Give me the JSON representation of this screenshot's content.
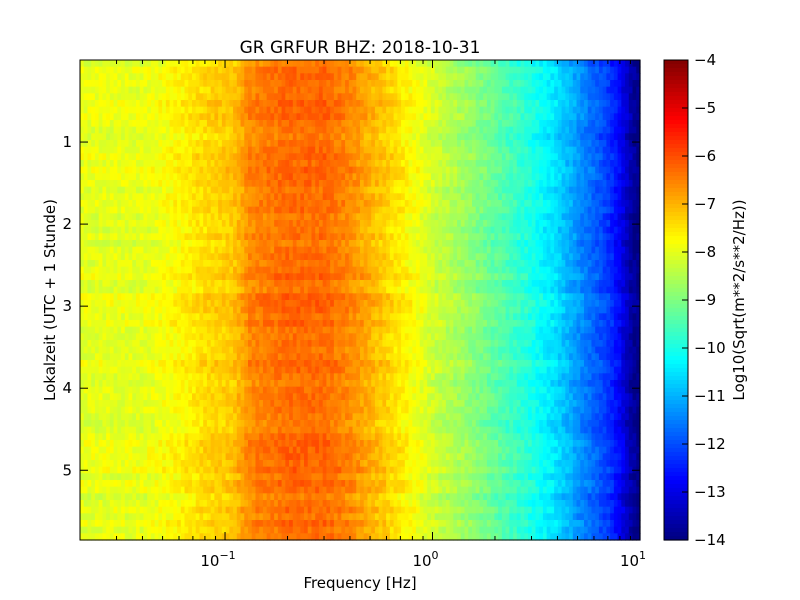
{
  "chart_data": {
    "type": "heatmap",
    "title": "GR GRFUR BHZ: 2018-10-31",
    "xlabel": "Frequency [Hz]",
    "ylabel": "Lokalzeit (UTC + 1 Stunde)",
    "x_scale": "log",
    "xlim": [
      0.02,
      10
    ],
    "ylim": [
      5.85,
      0
    ],
    "x_ticks": [
      {
        "value": 0.1,
        "base": "10",
        "exp": "−1"
      },
      {
        "value": 1,
        "base": "10",
        "exp": "0"
      },
      {
        "value": 10,
        "base": "10",
        "exp": "1"
      }
    ],
    "y_ticks": [
      {
        "value": 1,
        "label": "1"
      },
      {
        "value": 2,
        "label": "2"
      },
      {
        "value": 3,
        "label": "3"
      },
      {
        "value": 4,
        "label": "4"
      },
      {
        "value": 5,
        "label": "5"
      }
    ],
    "colorbar": {
      "label": "Log10(Sqrt(m**2/s**2/Hz))",
      "colormap": "jet",
      "range": [
        -14,
        -4
      ],
      "ticks": [
        {
          "value": -4,
          "label": "−4"
        },
        {
          "value": -5,
          "label": "−5"
        },
        {
          "value": -6,
          "label": "−6"
        },
        {
          "value": -7,
          "label": "−7"
        },
        {
          "value": -8,
          "label": "−8"
        },
        {
          "value": -9,
          "label": "−9"
        },
        {
          "value": -10,
          "label": "−10"
        },
        {
          "value": -11,
          "label": "−11"
        },
        {
          "value": -12,
          "label": "−12"
        },
        {
          "value": -13,
          "label": "−13"
        },
        {
          "value": -14,
          "label": "−14"
        }
      ]
    },
    "time_rows": 72,
    "spectrum_profile": [
      {
        "f": 0.02,
        "v": -8.0
      },
      {
        "f": 0.04,
        "v": -8.0
      },
      {
        "f": 0.06,
        "v": -7.7
      },
      {
        "f": 0.08,
        "v": -7.4
      },
      {
        "f": 0.11,
        "v": -7.2
      },
      {
        "f": 0.13,
        "v": -6.6
      },
      {
        "f": 0.2,
        "v": -6.3
      },
      {
        "f": 0.3,
        "v": -6.3
      },
      {
        "f": 0.4,
        "v": -6.6
      },
      {
        "f": 0.6,
        "v": -7.3
      },
      {
        "f": 0.8,
        "v": -7.8
      },
      {
        "f": 1.0,
        "v": -8.2
      },
      {
        "f": 1.5,
        "v": -8.8
      },
      {
        "f": 2.0,
        "v": -9.3
      },
      {
        "f": 3.0,
        "v": -10.0
      },
      {
        "f": 4.0,
        "v": -10.6
      },
      {
        "f": 5.0,
        "v": -11.3
      },
      {
        "f": 6.0,
        "v": -11.8
      },
      {
        "f": 7.0,
        "v": -12.2
      },
      {
        "f": 8.0,
        "v": -12.8
      },
      {
        "f": 9.0,
        "v": -13.6
      },
      {
        "f": 10.0,
        "v": -14.0
      }
    ]
  }
}
